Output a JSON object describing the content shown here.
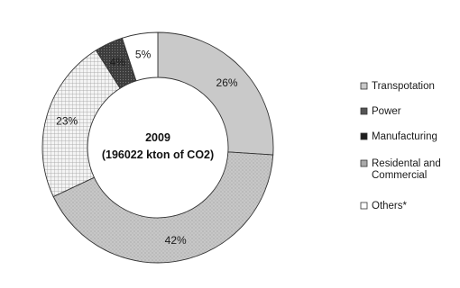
{
  "chart_data": {
    "type": "pie",
    "style": "donut",
    "center_label": {
      "line1": "2009",
      "line2": "(196022 kton of CO2)"
    },
    "slices": [
      {
        "label": "Transpotation",
        "label_lines": [
          "Transpotation"
        ],
        "value": 26,
        "display": "26%",
        "color": "#c9c9c9",
        "pattern": "none"
      },
      {
        "label": "Residental and Commercial",
        "label_lines": [
          "Residental and",
          "Commercial"
        ],
        "value": 42,
        "display": "42%",
        "color": "#c4c4c4",
        "pattern": "stipple"
      },
      {
        "label": "Manufacturing",
        "label_lines": [
          "Manufacturing"
        ],
        "value": 23,
        "display": "23%",
        "color": "#ffffff",
        "pattern": "crosshatch"
      },
      {
        "label": "Power",
        "label_lines": [
          "Power"
        ],
        "value": 4,
        "display": "4%",
        "color": "#4a4a4a",
        "pattern": "dark-dots"
      },
      {
        "label": "Others*",
        "label_lines": [
          "Others*"
        ],
        "value": 5,
        "display": "5%",
        "color": "#ffffff",
        "pattern": "none"
      }
    ],
    "legend": {
      "placement": "right",
      "items": [
        {
          "lines": [
            "Transpotation"
          ],
          "color": "#c9c9c9"
        },
        {
          "lines": [
            "Power"
          ],
          "color": "#555555"
        },
        {
          "lines": [
            "Manufacturing"
          ],
          "color": "#1f1f1f"
        },
        {
          "lines": [
            "Residental and",
            "Commercial"
          ],
          "color": "#a9a9a9"
        },
        {
          "lines": [
            "Others*"
          ],
          "color": "#ffffff"
        }
      ]
    }
  }
}
